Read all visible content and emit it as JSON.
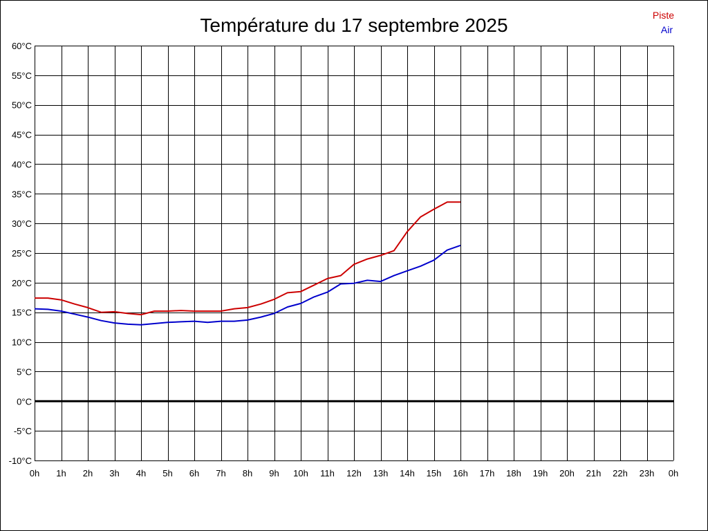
{
  "chart_data": {
    "type": "line",
    "title": "Température du 17 septembre 2025",
    "xlabel": "",
    "ylabel": "",
    "xlim": [
      0,
      24
    ],
    "ylim": [
      -10,
      60
    ],
    "grid": true,
    "legend_position": "top-right",
    "x_tick_labels": [
      "0h",
      "1h",
      "2h",
      "3h",
      "4h",
      "5h",
      "6h",
      "7h",
      "8h",
      "9h",
      "10h",
      "11h",
      "12h",
      "13h",
      "14h",
      "15h",
      "16h",
      "17h",
      "18h",
      "19h",
      "20h",
      "21h",
      "22h",
      "23h",
      "0h"
    ],
    "y_tick_labels": [
      "60°C",
      "55°C",
      "50°C",
      "45°C",
      "40°C",
      "35°C",
      "30°C",
      "25°C",
      "20°C",
      "15°C",
      "10°C",
      "5°C",
      "0°C",
      "-5°C",
      "-10°C"
    ],
    "series": [
      {
        "name": "Piste",
        "color": "#cc0000",
        "x": [
          0,
          0.5,
          1,
          1.5,
          2,
          2.5,
          3,
          3.5,
          4,
          4.5,
          5,
          5.5,
          6,
          6.5,
          7,
          7.5,
          8,
          8.5,
          9,
          9.5,
          10,
          10.5,
          11,
          11.5,
          12,
          12.5,
          13,
          13.5,
          14,
          14.5,
          15,
          15.5,
          16
        ],
        "y": [
          17.4,
          17.4,
          17.1,
          16.4,
          15.8,
          15.0,
          15.1,
          14.8,
          14.6,
          15.2,
          15.2,
          15.3,
          15.2,
          15.2,
          15.2,
          15.6,
          15.8,
          16.4,
          17.2,
          18.3,
          18.5,
          19.6,
          20.7,
          21.2,
          23.1,
          24.0,
          24.6,
          25.4,
          28.6,
          31.1,
          32.4,
          33.6,
          33.6
        ]
      },
      {
        "name": "Air",
        "color": "#0000cc",
        "x": [
          0,
          0.5,
          1,
          1.5,
          2,
          2.5,
          3,
          3.5,
          4,
          4.5,
          5,
          5.5,
          6,
          6.5,
          7,
          7.5,
          8,
          8.5,
          9,
          9.5,
          10,
          10.5,
          11,
          11.5,
          12,
          12.5,
          13,
          13.5,
          14,
          14.5,
          15,
          15.5,
          16
        ],
        "y": [
          15.6,
          15.5,
          15.2,
          14.7,
          14.2,
          13.6,
          13.2,
          13.0,
          12.9,
          13.1,
          13.3,
          13.4,
          13.5,
          13.3,
          13.5,
          13.5,
          13.7,
          14.2,
          14.8,
          15.9,
          16.5,
          17.6,
          18.4,
          19.8,
          19.9,
          20.4,
          20.2,
          21.2,
          22.0,
          22.8,
          23.8,
          25.5,
          26.3
        ]
      }
    ]
  }
}
